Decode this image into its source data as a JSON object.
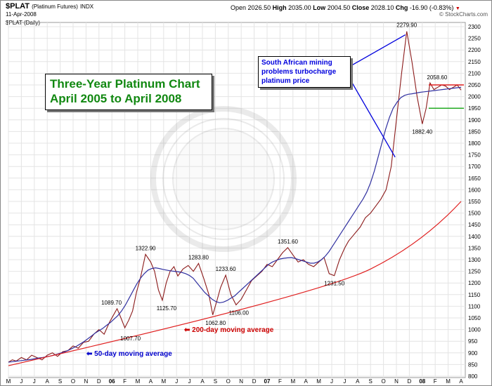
{
  "header": {
    "ticker": "$PLAT",
    "ticker_desc": "(Platinum Futures)",
    "exchange": "INDX",
    "date": "11-Apr-2008",
    "period": "$PLAT (Daily)",
    "open_label": "Open",
    "open": "2026.50",
    "high_label": "High",
    "high": "2035.00",
    "low_label": "Low",
    "low": "2004.50",
    "close_label": "Close",
    "close": "2028.10",
    "chg_label": "Chg",
    "chg": "-16.90 (-0.83%)",
    "credit": "© StockCharts.com"
  },
  "title_box": {
    "line1": "Three-Year Platinum Chart",
    "line2": "April 2005 to April 2008"
  },
  "callout": {
    "text": "South African mining problems turbocharge platinum price"
  },
  "ma_labels": {
    "ma200": "200-day moving average",
    "ma50": "50-day moving average"
  },
  "colors": {
    "price": "#8b1a1a",
    "ma50": "#3030a0",
    "ma200": "#e02020",
    "callout_line": "#0000dd",
    "hline_red": "#e02020",
    "hline_green": "#22aa22",
    "title": "#118811"
  },
  "chart_data": {
    "type": "line",
    "title": "Three-Year Platinum Chart April 2005 to April 2008",
    "ylim": [
      800,
      2300
    ],
    "y_ticks": [
      800,
      850,
      900,
      950,
      1000,
      1050,
      1100,
      1150,
      1200,
      1250,
      1300,
      1350,
      1400,
      1450,
      1500,
      1550,
      1600,
      1650,
      1700,
      1750,
      1800,
      1850,
      1900,
      1950,
      2000,
      2050,
      2100,
      2150,
      2200,
      2250,
      2300
    ],
    "x_ticks": [
      "M",
      "J",
      "J",
      "A",
      "S",
      "O",
      "N",
      "D",
      "06",
      "F",
      "M",
      "A",
      "M",
      "J",
      "J",
      "A",
      "S",
      "O",
      "N",
      "D",
      "07",
      "F",
      "M",
      "A",
      "M",
      "J",
      "J",
      "A",
      "S",
      "O",
      "N",
      "D",
      "08",
      "F",
      "M",
      "A"
    ],
    "grid": true,
    "series": [
      {
        "name": "Price",
        "x": [
          0.0,
          0.3,
          0.6,
          1.0,
          1.4,
          1.8,
          2.2,
          2.6,
          3.0,
          3.4,
          3.8,
          4.2,
          4.6,
          5.0,
          5.4,
          5.8,
          6.2,
          6.6,
          7.0,
          7.4,
          7.8,
          8.1,
          8.4,
          8.7,
          9.0,
          9.3,
          9.6,
          9.9,
          10.2,
          10.6,
          11.0,
          11.3,
          11.6,
          11.9,
          12.2,
          12.5,
          12.8,
          13.1,
          13.5,
          13.9,
          14.3,
          14.7,
          15.1,
          15.5,
          15.8,
          16.1,
          16.4,
          16.8,
          17.2,
          17.6,
          18.0,
          18.4,
          18.8,
          19.2,
          19.6,
          20.0,
          20.4,
          20.8,
          21.2,
          21.6,
          22.0,
          22.4,
          22.8,
          23.2,
          23.6,
          24.0,
          24.4,
          24.8,
          25.2,
          25.6,
          26.0,
          26.3,
          26.6,
          26.9,
          27.2,
          27.6,
          28.0,
          28.4,
          28.8,
          29.2,
          29.6,
          30.0,
          30.4,
          30.8,
          31.2,
          31.6,
          32.0,
          32.3,
          32.6,
          32.9,
          33.2,
          33.5,
          33.8,
          34.1,
          34.4,
          34.7,
          35.0
        ],
        "values": [
          860,
          870,
          865,
          880,
          870,
          890,
          880,
          870,
          890,
          900,
          885,
          905,
          910,
          930,
          920,
          945,
          950,
          980,
          1000,
          980,
          1030,
          1060,
          1089.7,
          1050,
          1007.7,
          1040,
          1080,
          1160,
          1220,
          1322.9,
          1290,
          1250,
          1170,
          1125.7,
          1200,
          1250,
          1270,
          1230,
          1260,
          1275,
          1250,
          1283.8,
          1220,
          1150,
          1062.8,
          1120,
          1180,
          1233.6,
          1150,
          1106,
          1130,
          1170,
          1210,
          1230,
          1250,
          1280,
          1270,
          1300,
          1330,
          1351.6,
          1320,
          1290,
          1300,
          1280,
          1270,
          1290,
          1310,
          1240,
          1231.5,
          1300,
          1350,
          1380,
          1400,
          1420,
          1440,
          1480,
          1500,
          1530,
          1560,
          1600,
          1700,
          1900,
          2100,
          2279.9,
          2150,
          2000,
          1882.4,
          1950,
          2058.6,
          2030,
          2040,
          2050,
          2045,
          2030,
          2040,
          2050,
          2028.1
        ]
      },
      {
        "name": "50-day moving average",
        "x": [
          0,
          3,
          6,
          9,
          12,
          15,
          18,
          21,
          24,
          27,
          30,
          33,
          36,
          39,
          42,
          45,
          48,
          51,
          54,
          57,
          60,
          63,
          66,
          69,
          72,
          75,
          78,
          81,
          84,
          87,
          90,
          93,
          96,
          99,
          102,
          105,
          108,
          111,
          114,
          117,
          120,
          123,
          126,
          129,
          132,
          135,
          138,
          141,
          144,
          147,
          150,
          153,
          156,
          159,
          162,
          165,
          168,
          171,
          174,
          177,
          180,
          183,
          186,
          189,
          192,
          195,
          198,
          201,
          204,
          207,
          210,
          213,
          216,
          219,
          222,
          225,
          228,
          231,
          234,
          237,
          240,
          243,
          246,
          249,
          252,
          255,
          258,
          261,
          264,
          267,
          270,
          273,
          276,
          279,
          282,
          285,
          288,
          291,
          294,
          297,
          300,
          303,
          306,
          309,
          312,
          315,
          318,
          321,
          324,
          327,
          330,
          333,
          336,
          339,
          342,
          345,
          348,
          351,
          354,
          357,
          360
        ],
        "values": [
          860,
          862,
          864,
          866,
          868,
          870,
          872,
          875,
          878,
          880,
          883,
          886,
          890,
          895,
          900,
          905,
          912,
          920,
          928,
          938,
          948,
          960,
          972,
          985,
          995,
          1005,
          1018,
          1030,
          1045,
          1060,
          1080,
          1105,
          1135,
          1165,
          1195,
          1220,
          1240,
          1255,
          1262,
          1265,
          1262,
          1258,
          1255,
          1252,
          1250,
          1248,
          1245,
          1240,
          1232,
          1220,
          1200,
          1180,
          1160,
          1145,
          1130,
          1120,
          1115,
          1118,
          1125,
          1135,
          1145,
          1160,
          1175,
          1190,
          1205,
          1220,
          1235,
          1250,
          1265,
          1280,
          1290,
          1297,
          1303,
          1306,
          1308,
          1309,
          1305,
          1300,
          1295,
          1290,
          1285,
          1285,
          1290,
          1300,
          1315,
          1335,
          1360,
          1385,
          1410,
          1435,
          1460,
          1485,
          1510,
          1535,
          1560,
          1590,
          1630,
          1680,
          1740,
          1800,
          1860,
          1910,
          1950,
          1975,
          1995,
          2005,
          2010,
          2012,
          2015,
          2018,
          2020,
          2022,
          2024,
          2026,
          2028,
          2030,
          2032,
          2034,
          2036,
          2038,
          2040
        ]
      },
      {
        "name": "200-day moving average",
        "x": [
          0,
          35
        ],
        "values": [
          845,
          1550
        ]
      }
    ],
    "annotations": [
      "1089.70",
      "1007.70",
      "1322.90",
      "1125.70",
      "1283.80",
      "1062.80",
      "1233.60",
      "1106.00",
      "1351.60",
      "1231.50",
      "2279.90",
      "2058.60",
      "1882.40"
    ],
    "hlines": [
      2050,
      1950
    ]
  }
}
